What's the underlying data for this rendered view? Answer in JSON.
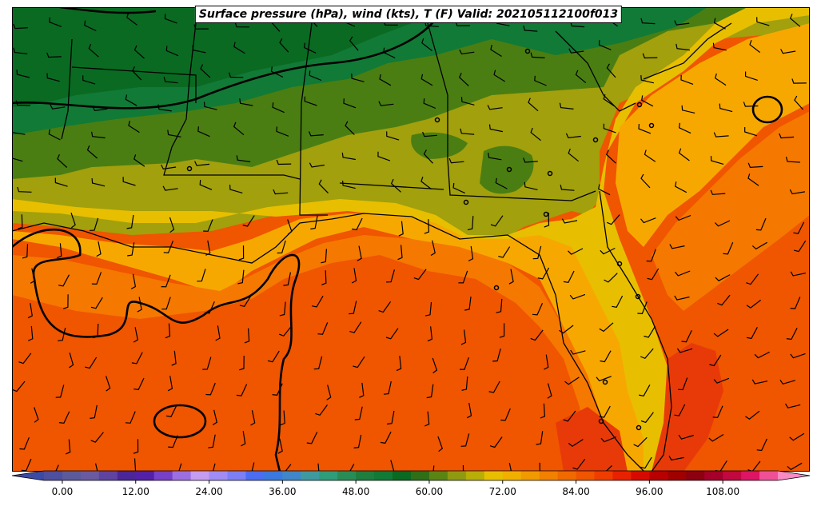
{
  "title": "Surface pressure (hPa), wind (kts), T (F) Valid: 202105112100f013",
  "colorbar": {
    "tick_labels": [
      "0.00",
      "12.00",
      "24.00",
      "36.00",
      "48.00",
      "60.00",
      "72.00",
      "84.00",
      "96.00",
      "108.00"
    ],
    "tick_values": [
      0,
      12,
      24,
      36,
      48,
      60,
      72,
      84,
      96,
      108
    ],
    "vmin": -6,
    "vmax": 120,
    "step": 3,
    "colors": [
      "#3b4aa5",
      "#4e4f9e",
      "#5a5a9c",
      "#6a5aa0",
      "#5f43a0",
      "#4b2699",
      "#5320a8",
      "#7740c8",
      "#9c6fe0",
      "#c49cf0",
      "#a08cf5",
      "#7d7ff5",
      "#4a6df2",
      "#3a7ae0",
      "#3f87c8",
      "#3e9aa0",
      "#2f9c7a",
      "#2a8c55",
      "#1d7e40",
      "#117a36",
      "#0a6a22",
      "#2f6f18",
      "#5a8515",
      "#8f9a10",
      "#b8ae08",
      "#e7bf00",
      "#f0b000",
      "#f09a00",
      "#f28100",
      "#f06a00",
      "#f05500",
      "#ef3d00",
      "#e82100",
      "#d60a00",
      "#b80000",
      "#a00000",
      "#8c0010",
      "#a4002a",
      "#c20840",
      "#de1464",
      "#f05098",
      "#f88ac4"
    ]
  },
  "temperature_zones_colors": {
    "dark_green": "#0a6a22",
    "green": "#117a36",
    "olive": "#5a8515",
    "olive_yellow": "#a2a00c",
    "yellow": "#e7bf00",
    "light_orange": "#f7a800",
    "orange": "#f57800",
    "red_orange": "#f05500",
    "red": "#e83a08"
  },
  "markers": {
    "city_dots": [
      [
        660,
        64
      ],
      [
        547,
        150
      ],
      [
        637,
        212
      ],
      [
        688,
        217
      ],
      [
        745,
        175
      ],
      [
        800,
        131
      ],
      [
        815,
        157
      ],
      [
        683,
        268
      ],
      [
        621,
        360
      ],
      [
        583,
        253
      ],
      [
        237,
        211
      ],
      [
        775,
        330
      ],
      [
        798,
        371
      ],
      [
        757,
        478
      ],
      [
        799,
        535
      ],
      [
        752,
        527
      ]
    ]
  }
}
